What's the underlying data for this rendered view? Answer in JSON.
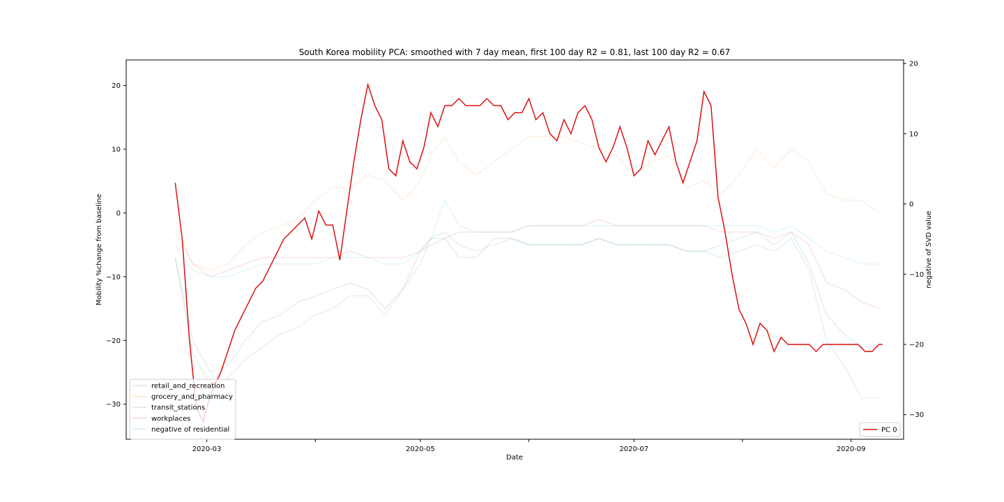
{
  "chart_data": {
    "type": "line",
    "title": "South Korea mobility PCA: smoothed with 7 day mean, first 100 day R2 = 0.81, last 100 day R2 = 0.67",
    "xlabel": "Date",
    "ylabel_left": "Mobility %change from baseline",
    "ylabel_right": "negative of SVD value",
    "x_range": [
      "2020-02-07",
      "2020-09-16"
    ],
    "x_ticks": [
      "2020-03",
      "2020-04",
      "2020-05",
      "2020-06",
      "2020-07",
      "2020-08",
      "2020-09"
    ],
    "x_tick_labels": [
      "2020-03",
      "",
      "2020-05",
      "",
      "2020-07",
      "",
      "2020-09"
    ],
    "ylim_left": [
      -35.5,
      24
    ],
    "ylim_right": [
      -33.5,
      20.5
    ],
    "yticks_left": [
      20,
      10,
      0,
      -10,
      -20,
      -30
    ],
    "yticks_right": [
      20,
      10,
      0,
      -10,
      -20,
      -30
    ],
    "legend_left": "lower-left",
    "legend_right": "lower-right",
    "grid": false,
    "series_left": [
      {
        "name": "retail_and_recreation",
        "color": "#1f77b4",
        "x": [
          "2020-02-21",
          "2020-02-26",
          "2020-03-02",
          "2020-03-07",
          "2020-03-12",
          "2020-03-17",
          "2020-03-22",
          "2020-03-27",
          "2020-04-01",
          "2020-04-06",
          "2020-04-11",
          "2020-04-16",
          "2020-04-21",
          "2020-04-26",
          "2020-05-01",
          "2020-05-04",
          "2020-05-08",
          "2020-05-12",
          "2020-05-17",
          "2020-05-22",
          "2020-05-27",
          "2020-06-01",
          "2020-06-06",
          "2020-06-11",
          "2020-06-16",
          "2020-06-21",
          "2020-06-26",
          "2020-07-01",
          "2020-07-06",
          "2020-07-11",
          "2020-07-16",
          "2020-07-21",
          "2020-07-26",
          "2020-07-31",
          "2020-08-05",
          "2020-08-10",
          "2020-08-15",
          "2020-08-20",
          "2020-08-25",
          "2020-08-30",
          "2020-09-04",
          "2020-09-09"
        ],
        "y": [
          -7,
          -20,
          -25,
          -24,
          -20,
          -17,
          -16,
          -14,
          -13,
          -12,
          -11,
          -12,
          -15,
          -12,
          -6,
          -4,
          -4,
          -7,
          -7,
          -4,
          -4,
          -5,
          -5,
          -5,
          -5,
          -4,
          -5,
          -5,
          -5,
          -5,
          -6,
          -6,
          -5,
          -4,
          -3,
          -5,
          -3,
          -8,
          -16,
          -19,
          -21,
          -21
        ]
      },
      {
        "name": "grocery_and_pharmacy",
        "color": "#ff7f0e",
        "x": [
          "2020-02-21",
          "2020-02-26",
          "2020-03-02",
          "2020-03-07",
          "2020-03-12",
          "2020-03-17",
          "2020-03-22",
          "2020-03-27",
          "2020-04-01",
          "2020-04-06",
          "2020-04-11",
          "2020-04-16",
          "2020-04-21",
          "2020-04-26",
          "2020-05-01",
          "2020-05-04",
          "2020-05-08",
          "2020-05-12",
          "2020-05-17",
          "2020-05-22",
          "2020-05-27",
          "2020-06-01",
          "2020-06-06",
          "2020-06-11",
          "2020-06-16",
          "2020-06-21",
          "2020-06-26",
          "2020-07-01",
          "2020-07-06",
          "2020-07-11",
          "2020-07-16",
          "2020-07-21",
          "2020-07-26",
          "2020-07-31",
          "2020-08-05",
          "2020-08-10",
          "2020-08-15",
          "2020-08-20",
          "2020-08-25",
          "2020-08-30",
          "2020-09-04",
          "2020-09-09"
        ],
        "y": [
          -2,
          -8,
          -9,
          -8,
          -5,
          -3,
          -2,
          -1,
          2,
          4,
          4,
          6,
          5,
          2,
          5,
          9,
          12,
          8,
          6,
          8,
          10,
          12,
          12,
          12,
          11,
          10,
          9,
          6,
          8,
          9,
          4,
          5,
          3,
          6,
          10,
          7,
          10,
          8,
          3,
          2,
          2,
          0
        ]
      },
      {
        "name": "transit_stations",
        "color": "#2ca02c",
        "x": [
          "2020-02-21",
          "2020-02-26",
          "2020-03-02",
          "2020-03-07",
          "2020-03-12",
          "2020-03-17",
          "2020-03-22",
          "2020-03-27",
          "2020-04-01",
          "2020-04-06",
          "2020-04-11",
          "2020-04-16",
          "2020-04-21",
          "2020-04-26",
          "2020-05-01",
          "2020-05-04",
          "2020-05-08",
          "2020-05-12",
          "2020-05-17",
          "2020-05-22",
          "2020-05-27",
          "2020-06-01",
          "2020-06-06",
          "2020-06-11",
          "2020-06-16",
          "2020-06-21",
          "2020-06-26",
          "2020-07-01",
          "2020-07-06",
          "2020-07-11",
          "2020-07-16",
          "2020-07-21",
          "2020-07-26",
          "2020-07-31",
          "2020-08-05",
          "2020-08-10",
          "2020-08-15",
          "2020-08-20",
          "2020-08-25",
          "2020-08-30",
          "2020-09-04",
          "2020-09-09"
        ],
        "y": [
          -7,
          -22,
          -27,
          -26,
          -23,
          -21,
          -19,
          -18,
          -16,
          -15,
          -13,
          -13,
          -16,
          -12,
          -8,
          -4,
          -3,
          -5,
          -6,
          -5,
          -4,
          -5,
          -5,
          -5,
          -5,
          -4,
          -5,
          -5,
          -5,
          -5,
          -6,
          -6,
          -7,
          -6,
          -5,
          -6,
          -4,
          -9,
          -20,
          -24,
          -29,
          -29
        ]
      },
      {
        "name": "workplaces",
        "color": "#d62728",
        "x": [
          "2020-02-21",
          "2020-02-26",
          "2020-03-02",
          "2020-03-07",
          "2020-03-12",
          "2020-03-17",
          "2020-03-22",
          "2020-03-27",
          "2020-04-01",
          "2020-04-06",
          "2020-04-11",
          "2020-04-16",
          "2020-04-21",
          "2020-04-26",
          "2020-05-01",
          "2020-05-04",
          "2020-05-08",
          "2020-05-12",
          "2020-05-17",
          "2020-05-22",
          "2020-05-27",
          "2020-06-01",
          "2020-06-06",
          "2020-06-11",
          "2020-06-16",
          "2020-06-21",
          "2020-06-26",
          "2020-07-01",
          "2020-07-06",
          "2020-07-11",
          "2020-07-16",
          "2020-07-21",
          "2020-07-26",
          "2020-07-31",
          "2020-08-05",
          "2020-08-10",
          "2020-08-15",
          "2020-08-20",
          "2020-08-25",
          "2020-08-30",
          "2020-09-04",
          "2020-09-09"
        ],
        "y": [
          -3,
          -8,
          -10,
          -9,
          -8,
          -7,
          -7,
          -7,
          -7,
          -7,
          -6,
          -7,
          -7,
          -7,
          -6,
          -5,
          -4,
          -3,
          -3,
          -3,
          -3,
          -2,
          -2,
          -2,
          -2,
          -1,
          -2,
          -2,
          -2,
          -2,
          -2,
          -2,
          -3,
          -3,
          -3,
          -4,
          -3,
          -5,
          -11,
          -12,
          -14,
          -15
        ]
      },
      {
        "name": "negative of residential",
        "color": "#17becf",
        "x": [
          "2020-02-21",
          "2020-02-26",
          "2020-03-02",
          "2020-03-07",
          "2020-03-12",
          "2020-03-17",
          "2020-03-22",
          "2020-03-27",
          "2020-04-01",
          "2020-04-06",
          "2020-04-11",
          "2020-04-16",
          "2020-04-21",
          "2020-04-26",
          "2020-05-01",
          "2020-05-04",
          "2020-05-08",
          "2020-05-12",
          "2020-05-17",
          "2020-05-22",
          "2020-05-27",
          "2020-06-01",
          "2020-06-06",
          "2020-06-11",
          "2020-06-16",
          "2020-06-21",
          "2020-06-26",
          "2020-07-01",
          "2020-07-06",
          "2020-07-11",
          "2020-07-16",
          "2020-07-21",
          "2020-07-26",
          "2020-07-31",
          "2020-08-05",
          "2020-08-10",
          "2020-08-15",
          "2020-08-20",
          "2020-08-25",
          "2020-08-30",
          "2020-09-04",
          "2020-09-09"
        ],
        "y": [
          -5,
          -9,
          -10,
          -10,
          -9,
          -8,
          -8,
          -8,
          -8,
          -7,
          -7,
          -7,
          -8,
          -8,
          -6,
          -4,
          2,
          -2,
          -3,
          -3,
          -3,
          -2,
          -2,
          -2,
          -2,
          -2,
          -2,
          -2,
          -2,
          -2,
          -2,
          -2,
          -2,
          -2,
          -2,
          -3,
          -2,
          -4,
          -6,
          -7,
          -8,
          -8
        ]
      }
    ],
    "series_right": [
      {
        "name": "PC 0",
        "color": "#dd0f0f",
        "x": [
          "2020-02-21",
          "2020-02-23",
          "2020-02-25",
          "2020-02-27",
          "2020-02-29",
          "2020-03-01",
          "2020-03-03",
          "2020-03-05",
          "2020-03-07",
          "2020-03-09",
          "2020-03-11",
          "2020-03-13",
          "2020-03-15",
          "2020-03-17",
          "2020-03-19",
          "2020-03-21",
          "2020-03-23",
          "2020-03-25",
          "2020-03-27",
          "2020-03-29",
          "2020-03-31",
          "2020-04-02",
          "2020-04-04",
          "2020-04-06",
          "2020-04-08",
          "2020-04-10",
          "2020-04-12",
          "2020-04-14",
          "2020-04-16",
          "2020-04-18",
          "2020-04-20",
          "2020-04-22",
          "2020-04-24",
          "2020-04-26",
          "2020-04-28",
          "2020-04-30",
          "2020-05-02",
          "2020-05-04",
          "2020-05-06",
          "2020-05-08",
          "2020-05-10",
          "2020-05-12",
          "2020-05-14",
          "2020-05-16",
          "2020-05-18",
          "2020-05-20",
          "2020-05-22",
          "2020-05-24",
          "2020-05-26",
          "2020-05-28",
          "2020-05-30",
          "2020-06-01",
          "2020-06-03",
          "2020-06-05",
          "2020-06-07",
          "2020-06-09",
          "2020-06-11",
          "2020-06-13",
          "2020-06-15",
          "2020-06-17",
          "2020-06-19",
          "2020-06-21",
          "2020-06-23",
          "2020-06-25",
          "2020-06-27",
          "2020-06-29",
          "2020-07-01",
          "2020-07-03",
          "2020-07-05",
          "2020-07-07",
          "2020-07-09",
          "2020-07-11",
          "2020-07-13",
          "2020-07-15",
          "2020-07-17",
          "2020-07-19",
          "2020-07-21",
          "2020-07-23",
          "2020-07-25",
          "2020-07-27",
          "2020-07-29",
          "2020-07-31",
          "2020-08-02",
          "2020-08-04",
          "2020-08-06",
          "2020-08-08",
          "2020-08-10",
          "2020-08-12",
          "2020-08-14",
          "2020-08-16",
          "2020-08-18",
          "2020-08-20",
          "2020-08-22",
          "2020-08-24",
          "2020-08-26",
          "2020-08-28",
          "2020-08-30",
          "2020-09-01",
          "2020-09-03",
          "2020-09-05",
          "2020-09-07",
          "2020-09-09",
          "2020-09-10"
        ],
        "y": [
          3,
          -5,
          -19,
          -29,
          -31,
          -29,
          -26,
          -24,
          -21,
          -18,
          -16,
          -14,
          -12,
          -11,
          -9,
          -7,
          -5,
          -4,
          -3,
          -2,
          -5,
          -1,
          -3,
          -3,
          -8,
          -1,
          6,
          12,
          17,
          14,
          12,
          5,
          4,
          9,
          6,
          5,
          8,
          13,
          11,
          14,
          14,
          15,
          14,
          14,
          14,
          15,
          14,
          14,
          12,
          13,
          13,
          15,
          12,
          13,
          10,
          9,
          12,
          10,
          13,
          14,
          12,
          8,
          6,
          8,
          11,
          8,
          4,
          5,
          9,
          7,
          9,
          11,
          6,
          3,
          6,
          9,
          16,
          14,
          1,
          -4,
          -10,
          -15,
          -17,
          -20,
          -17,
          -18,
          -21,
          -19,
          -20,
          -20,
          -20,
          -20,
          -21,
          -20,
          -20,
          -20,
          -20,
          -20,
          -20,
          -21,
          -21,
          -20,
          -20
        ]
      }
    ]
  }
}
